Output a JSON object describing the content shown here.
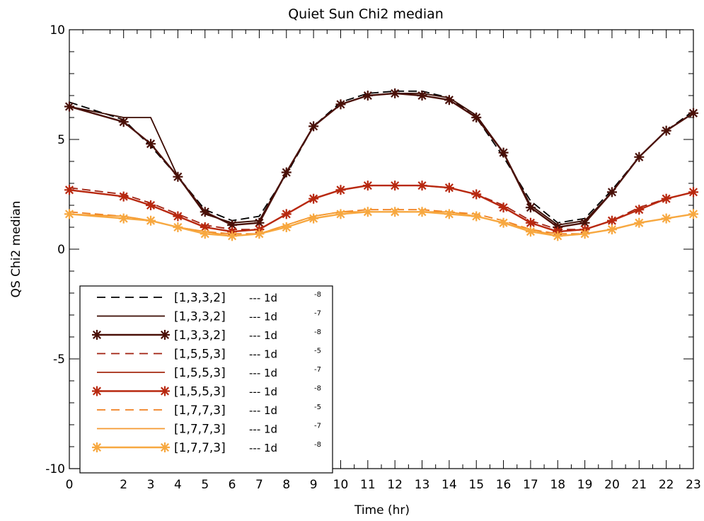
{
  "chart_data": {
    "type": "line",
    "title": "Quiet Sun Chi2 median",
    "xlabel": "Time (hr)",
    "ylabel": "QS Chi2 median",
    "xlim": [
      0,
      23
    ],
    "ylim": [
      -10,
      10
    ],
    "x_ticks": [
      "0",
      "2",
      "3",
      "4",
      "5",
      "6",
      "7",
      "8",
      "9",
      "10",
      "11",
      "12",
      "13",
      "14",
      "15",
      "16",
      "17",
      "18",
      "19",
      "20",
      "21",
      "22",
      "23"
    ],
    "x_tick_positions": [
      0,
      2,
      3,
      4,
      5,
      6,
      7,
      8,
      9,
      10,
      11,
      12,
      13,
      14,
      15,
      16,
      17,
      18,
      19,
      20,
      21,
      22,
      23
    ],
    "y_ticks": [
      "-10",
      "-5",
      "0",
      "5",
      "10"
    ],
    "y_tick_values": [
      -10,
      -5,
      0,
      5,
      10
    ],
    "legend_position": "bottom-left",
    "legend": [
      {
        "label": "[1,3,3,2]",
        "suffix": "--- 1d",
        "exp": "-8"
      },
      {
        "label": "[1,3,3,2]",
        "suffix": "--- 1d",
        "exp": "-7"
      },
      {
        "label": "[1,3,3,2]",
        "suffix": "--- 1d",
        "exp": "-8"
      },
      {
        "label": "[1,5,5,3]",
        "suffix": "--- 1d",
        "exp": "-5"
      },
      {
        "label": "[1,5,5,3]",
        "suffix": "--- 1d",
        "exp": "-7"
      },
      {
        "label": "[1,5,5,3]",
        "suffix": "--- 1d",
        "exp": "-8"
      },
      {
        "label": "[1,7,7,3]",
        "suffix": "--- 1d",
        "exp": "-5"
      },
      {
        "label": "[1,7,7,3]",
        "suffix": "--- 1d",
        "exp": "-7"
      },
      {
        "label": "[1,7,7,3]",
        "suffix": "--- 1d",
        "exp": "-8"
      }
    ],
    "series": [
      {
        "name": "[1,3,3,2] --- 1d-8",
        "style": "dashed",
        "color": "#000000",
        "marker": false,
        "x": [
          0,
          2,
          3,
          4,
          5,
          6,
          7,
          8,
          9,
          10,
          11,
          12,
          13,
          14,
          15,
          16,
          17,
          18,
          19,
          20,
          21,
          22,
          23
        ],
        "y": [
          6.7,
          5.9,
          4.7,
          3.3,
          1.8,
          1.3,
          1.5,
          3.4,
          5.6,
          6.7,
          7.1,
          7.2,
          7.2,
          6.9,
          6.0,
          4.2,
          2.2,
          1.2,
          1.4,
          2.7,
          4.2,
          5.4,
          6.3
        ]
      },
      {
        "name": "[1,3,3,2] --- 1d-7",
        "style": "solid",
        "color": "#3a0a00",
        "marker": false,
        "x": [
          0,
          2,
          3,
          4,
          5,
          6,
          7,
          8,
          9,
          10,
          11,
          12,
          13,
          14,
          15,
          16,
          17,
          18,
          19,
          20,
          21,
          22,
          23
        ],
        "y": [
          6.5,
          6.0,
          6.0,
          3.3,
          1.6,
          1.2,
          1.3,
          3.5,
          5.6,
          6.6,
          7.0,
          7.1,
          7.1,
          6.9,
          6.1,
          4.4,
          2.0,
          1.1,
          1.3,
          2.6,
          4.2,
          5.4,
          6.2
        ]
      },
      {
        "name": "[1,3,3,2] --- 1d-8 *",
        "style": "solid",
        "color": "#4a1008",
        "marker": true,
        "x": [
          0,
          2,
          3,
          4,
          5,
          6,
          7,
          8,
          9,
          10,
          11,
          12,
          13,
          14,
          15,
          16,
          17,
          18,
          19,
          20,
          21,
          22,
          23
        ],
        "y": [
          6.5,
          5.8,
          4.8,
          3.3,
          1.7,
          1.1,
          1.2,
          3.5,
          5.6,
          6.6,
          7.0,
          7.1,
          7.0,
          6.8,
          6.0,
          4.4,
          1.9,
          1.0,
          1.2,
          2.6,
          4.2,
          5.4,
          6.2
        ]
      },
      {
        "name": "[1,5,5,3] --- 1d-5",
        "style": "dashed",
        "color": "#a02010",
        "marker": false,
        "x": [
          0,
          2,
          3,
          4,
          5,
          6,
          7,
          8,
          9,
          10,
          11,
          12,
          13,
          14,
          15,
          16,
          17,
          18,
          19,
          20,
          21,
          22,
          23
        ],
        "y": [
          2.8,
          2.5,
          2.1,
          1.6,
          1.1,
          0.9,
          0.9,
          1.6,
          2.3,
          2.7,
          2.9,
          2.9,
          2.9,
          2.8,
          2.5,
          2.0,
          1.3,
          0.9,
          0.9,
          1.3,
          1.9,
          2.3,
          2.6
        ]
      },
      {
        "name": "[1,5,5,3] --- 1d-7",
        "style": "solid",
        "color": "#a52a10",
        "marker": false,
        "x": [
          0,
          2,
          3,
          4,
          5,
          6,
          7,
          8,
          9,
          10,
          11,
          12,
          13,
          14,
          15,
          16,
          17,
          18,
          19,
          20,
          21,
          22,
          23
        ],
        "y": [
          2.7,
          2.4,
          2.0,
          1.5,
          1.0,
          0.8,
          0.9,
          1.6,
          2.3,
          2.7,
          2.9,
          2.9,
          2.9,
          2.8,
          2.5,
          1.9,
          1.2,
          0.8,
          0.9,
          1.3,
          1.8,
          2.3,
          2.6
        ]
      },
      {
        "name": "[1,5,5,3] --- 1d-8 *",
        "style": "solid",
        "color": "#b8280f",
        "marker": true,
        "x": [
          0,
          2,
          3,
          4,
          5,
          6,
          7,
          8,
          9,
          10,
          11,
          12,
          13,
          14,
          15,
          16,
          17,
          18,
          19,
          20,
          21,
          22,
          23
        ],
        "y": [
          2.7,
          2.4,
          2.0,
          1.5,
          1.0,
          0.8,
          0.9,
          1.6,
          2.3,
          2.7,
          2.9,
          2.9,
          2.9,
          2.8,
          2.5,
          1.9,
          1.2,
          0.8,
          0.9,
          1.3,
          1.8,
          2.3,
          2.6
        ]
      },
      {
        "name": "[1,7,7,3] --- 1d-5",
        "style": "dashed",
        "color": "#f08020",
        "marker": false,
        "x": [
          0,
          2,
          3,
          4,
          5,
          6,
          7,
          8,
          9,
          10,
          11,
          12,
          13,
          14,
          15,
          16,
          17,
          18,
          19,
          20,
          21,
          22,
          23
        ],
        "y": [
          1.7,
          1.5,
          1.3,
          1.0,
          0.8,
          0.7,
          0.7,
          1.1,
          1.5,
          1.7,
          1.8,
          1.8,
          1.8,
          1.7,
          1.6,
          1.3,
          0.9,
          0.7,
          0.7,
          0.9,
          1.2,
          1.4,
          1.6
        ]
      },
      {
        "name": "[1,7,7,3] --- 1d-7",
        "style": "solid",
        "color": "#f59a30",
        "marker": false,
        "x": [
          0,
          2,
          3,
          4,
          5,
          6,
          7,
          8,
          9,
          10,
          11,
          12,
          13,
          14,
          15,
          16,
          17,
          18,
          19,
          20,
          21,
          22,
          23
        ],
        "y": [
          1.6,
          1.5,
          1.3,
          1.0,
          0.8,
          0.6,
          0.7,
          1.1,
          1.5,
          1.7,
          1.7,
          1.7,
          1.7,
          1.7,
          1.5,
          1.2,
          0.9,
          0.6,
          0.7,
          0.9,
          1.2,
          1.4,
          1.6
        ]
      },
      {
        "name": "[1,7,7,3] --- 1d-8 *",
        "style": "solid",
        "color": "#f7a840",
        "marker": true,
        "x": [
          0,
          2,
          3,
          4,
          5,
          6,
          7,
          8,
          9,
          10,
          11,
          12,
          13,
          14,
          15,
          16,
          17,
          18,
          19,
          20,
          21,
          22,
          23
        ],
        "y": [
          1.6,
          1.4,
          1.3,
          1.0,
          0.7,
          0.6,
          0.7,
          1.0,
          1.4,
          1.6,
          1.7,
          1.7,
          1.7,
          1.6,
          1.5,
          1.2,
          0.8,
          0.6,
          0.7,
          0.9,
          1.2,
          1.4,
          1.6
        ]
      }
    ]
  }
}
